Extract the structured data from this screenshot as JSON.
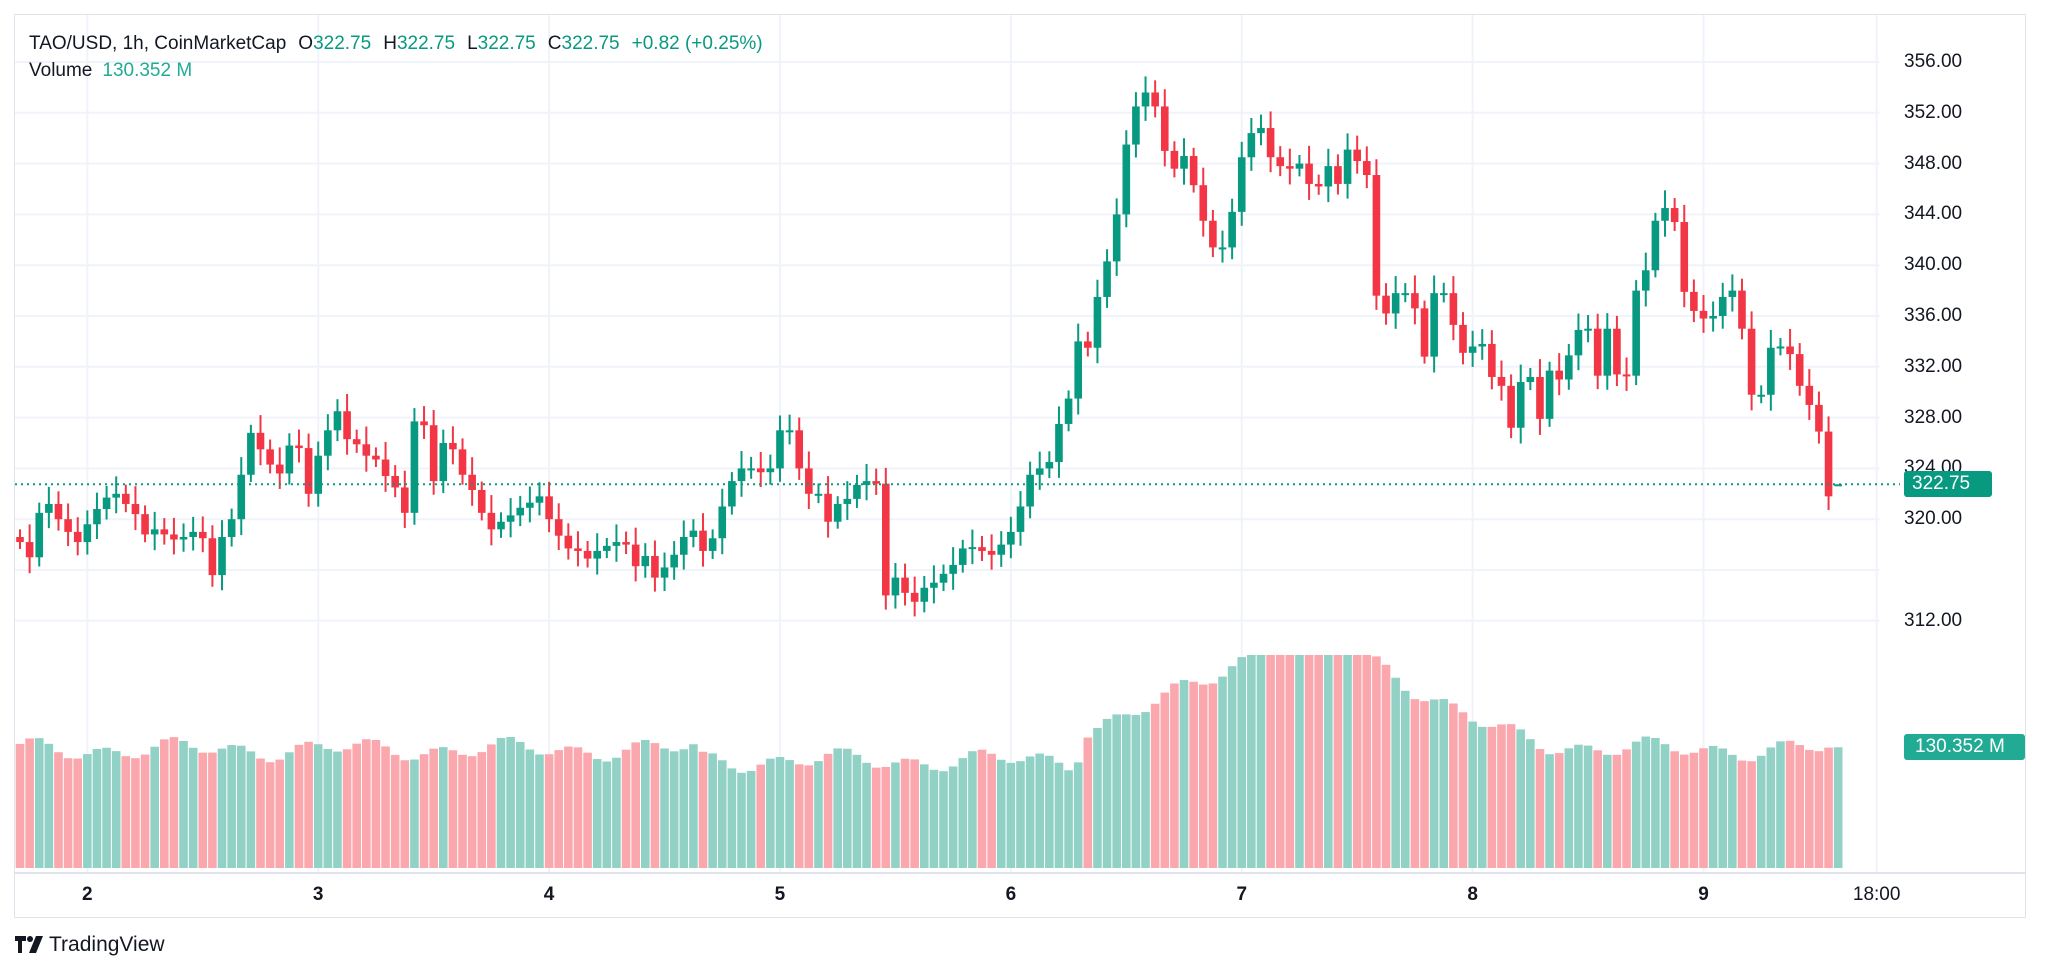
{
  "legend": {
    "symbol": "TAO/USD, 1h, CoinMarketCap",
    "open_label": "O",
    "open": "322.75",
    "high_label": "H",
    "high": "322.75",
    "low_label": "L",
    "low": "322.75",
    "close_label": "C",
    "close": "322.75",
    "change": "+0.82 (+0.25%)",
    "volume_label": "Volume",
    "volume_value": "130.352 M"
  },
  "badges": {
    "last_price": "322.75",
    "last_volume": "130.352 M"
  },
  "colors": {
    "up": "#089981",
    "down": "#f23645",
    "up_volume": "#92d2c6",
    "down_volume": "#faa7ae",
    "grid": "#f0f3fa"
  },
  "branding": {
    "name": "TradingView",
    "logo_icon": "tradingview-logo-icon"
  },
  "chart_data": {
    "type": "candlestick",
    "title": "TAO/USD, 1h, CoinMarketCap",
    "timeframe": "1h",
    "ylim": [
      308,
      358
    ],
    "y_ticks": [
      "356.00",
      "352.00",
      "348.00",
      "344.00",
      "340.00",
      "336.00",
      "332.00",
      "328.00",
      "324.00",
      "320.00",
      "312.00"
    ],
    "y_tick_values": [
      356,
      352,
      348,
      344,
      340,
      336,
      332,
      328,
      324,
      320,
      312
    ],
    "x_tick_labels": [
      {
        "label": "2",
        "candle_index": 7,
        "bold": true
      },
      {
        "label": "3",
        "candle_index": 31,
        "bold": true
      },
      {
        "label": "4",
        "candle_index": 55,
        "bold": true
      },
      {
        "label": "5",
        "candle_index": 79,
        "bold": true
      },
      {
        "label": "6",
        "candle_index": 103,
        "bold": true
      },
      {
        "label": "7",
        "candle_index": 127,
        "bold": true
      },
      {
        "label": "8",
        "candle_index": 151,
        "bold": true
      },
      {
        "label": "9",
        "candle_index": 175,
        "bold": true
      },
      {
        "label": "18:00",
        "candle_index": 193,
        "bold": false
      }
    ],
    "last_price": 322.75,
    "volume_max_m": 230,
    "last_volume_m": 130.352,
    "closes": [
      318.2,
      317.0,
      320.5,
      321.2,
      320.0,
      319.0,
      318.2,
      319.6,
      320.8,
      321.7,
      322.0,
      321.2,
      320.4,
      318.8,
      319.2,
      318.8,
      318.4,
      318.6,
      319.0,
      318.5,
      315.6,
      318.6,
      320.0,
      323.5,
      326.8,
      325.5,
      324.3,
      323.6,
      325.8,
      325.6,
      322.0,
      325.0,
      327.0,
      328.5,
      326.3,
      325.9,
      325.0,
      324.7,
      323.4,
      322.5,
      320.5,
      327.7,
      327.4,
      323.0,
      326.0,
      325.5,
      323.5,
      322.3,
      320.5,
      319.2,
      319.8,
      320.3,
      320.9,
      321.3,
      321.8,
      320.0,
      318.7,
      317.7,
      317.5,
      316.9,
      317.5,
      317.9,
      318.2,
      318.0,
      316.3,
      317.1,
      315.4,
      316.2,
      317.2,
      318.6,
      319.1,
      317.5,
      318.5,
      321.0,
      323.0,
      324.0,
      324.0,
      323.7,
      324.0,
      327.0,
      327.0,
      324.0,
      322.0,
      322.0,
      319.8,
      321.2,
      321.6,
      322.7,
      323.0,
      322.8,
      314.0,
      315.4,
      314.2,
      313.5,
      314.6,
      315.0,
      315.7,
      316.4,
      317.7,
      317.8,
      317.5,
      317.2,
      318.0,
      319.0,
      321.0,
      323.5,
      324.0,
      324.5,
      327.5,
      329.5,
      334.0,
      333.5,
      337.5,
      340.3,
      344.0,
      349.5,
      352.5,
      353.6,
      352.5,
      349.0,
      347.6,
      348.6,
      346.3,
      343.5,
      341.4,
      341.4,
      344.2,
      348.5,
      350.4,
      350.8,
      348.5,
      347.8,
      347.6,
      348.0,
      346.4,
      346.2,
      347.8,
      346.4,
      349.1,
      348.2,
      347.1,
      337.6,
      336.2,
      337.8,
      337.8,
      336.6,
      332.8,
      337.8,
      337.8,
      335.3,
      333.1,
      333.6,
      333.8,
      331.2,
      330.5,
      327.2,
      330.8,
      331.2,
      327.9,
      331.7,
      331.0,
      332.9,
      334.9,
      335.0,
      331.3,
      335.0,
      331.4,
      331.3,
      338.0,
      339.6,
      343.5,
      344.5,
      343.4,
      337.9,
      336.4,
      335.8,
      336.0,
      337.5,
      338.0,
      335.0,
      329.8,
      329.8,
      333.5,
      333.6,
      333.0,
      330.5,
      329.0,
      326.9,
      321.8,
      322.75
    ],
    "series": [
      {
        "name": "TAO/USD",
        "kind": "ohlc"
      },
      {
        "name": "Volume",
        "kind": "volume",
        "unit": "M"
      }
    ]
  }
}
